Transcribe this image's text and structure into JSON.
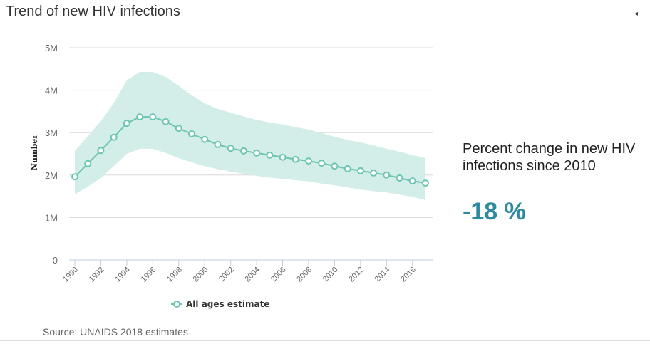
{
  "title": "Trend of new HIV infections",
  "corner_icon": "arrow-left-icon",
  "side_panel": {
    "label": "Percent change in new HIV infections since 2010",
    "value": "-18 %"
  },
  "source": "Source: UNAIDS 2018 estimates",
  "colors": {
    "line": "#6cc5b3",
    "band": "#d3ede8",
    "accent": "#2e8aa0"
  },
  "chart_data": {
    "type": "line",
    "title": "Trend of new HIV infections",
    "xlabel": "",
    "ylabel": "Number",
    "ylim": [
      0,
      5000000
    ],
    "yticks": [
      {
        "v": 0,
        "label": "0"
      },
      {
        "v": 1000000,
        "label": "1M"
      },
      {
        "v": 2000000,
        "label": "2M"
      },
      {
        "v": 3000000,
        "label": "3M"
      },
      {
        "v": 4000000,
        "label": "4M"
      },
      {
        "v": 5000000,
        "label": "5M"
      }
    ],
    "xlim": [
      1990,
      2017
    ],
    "xticks": [
      "1990",
      "1992",
      "1994",
      "1996",
      "1998",
      "2000",
      "2002",
      "2004",
      "2006",
      "2008",
      "2010",
      "2012",
      "2014",
      "2016"
    ],
    "grid": true,
    "legend": "bottom-center",
    "x": [
      1990,
      1991,
      1992,
      1993,
      1994,
      1995,
      1996,
      1997,
      1998,
      1999,
      2000,
      2001,
      2002,
      2003,
      2004,
      2005,
      2006,
      2007,
      2008,
      2009,
      2010,
      2011,
      2012,
      2013,
      2014,
      2015,
      2016,
      2017
    ],
    "series": [
      {
        "name": "All ages estimate",
        "values": [
          1960000,
          2270000,
          2580000,
          2890000,
          3220000,
          3370000,
          3370000,
          3260000,
          3100000,
          2970000,
          2840000,
          2720000,
          2630000,
          2570000,
          2520000,
          2470000,
          2420000,
          2370000,
          2330000,
          2280000,
          2210000,
          2150000,
          2100000,
          2050000,
          2000000,
          1930000,
          1860000,
          1810000
        ],
        "upper": [
          2570000,
          2920000,
          3270000,
          3700000,
          4230000,
          4430000,
          4430000,
          4310000,
          4100000,
          3880000,
          3690000,
          3560000,
          3470000,
          3380000,
          3300000,
          3240000,
          3190000,
          3130000,
          3070000,
          2990000,
          2900000,
          2830000,
          2770000,
          2700000,
          2620000,
          2550000,
          2470000,
          2400000
        ],
        "lower": [
          1540000,
          1730000,
          1930000,
          2210000,
          2500000,
          2620000,
          2620000,
          2520000,
          2400000,
          2300000,
          2210000,
          2140000,
          2080000,
          2030000,
          1980000,
          1940000,
          1910000,
          1880000,
          1850000,
          1800000,
          1760000,
          1710000,
          1660000,
          1620000,
          1590000,
          1540000,
          1490000,
          1410000
        ]
      }
    ]
  }
}
